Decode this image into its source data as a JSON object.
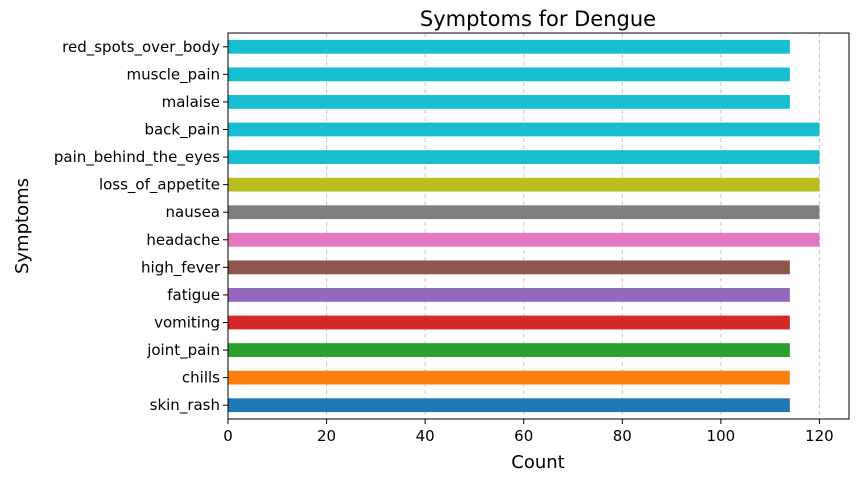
{
  "chart_data": {
    "type": "bar",
    "orientation": "horizontal",
    "title": "Symptoms for Dengue",
    "xlabel": "Count",
    "ylabel": "Symptoms",
    "xlim": [
      0,
      126
    ],
    "xticks": [
      0,
      20,
      40,
      60,
      80,
      100,
      120
    ],
    "grid": "x-dashed",
    "categories": [
      "skin_rash",
      "chills",
      "joint_pain",
      "vomiting",
      "fatigue",
      "high_fever",
      "headache",
      "nausea",
      "loss_of_appetite",
      "pain_behind_the_eyes",
      "back_pain",
      "malaise",
      "muscle_pain",
      "red_spots_over_body"
    ],
    "values": [
      114,
      114,
      114,
      114,
      114,
      114,
      120,
      120,
      120,
      120,
      120,
      114,
      114,
      114
    ],
    "colors": [
      "#1f77b4",
      "#ff7f0e",
      "#2ca02c",
      "#d62728",
      "#9467bd",
      "#8c564b",
      "#e377c2",
      "#7f7f7f",
      "#bcbd22",
      "#17becf",
      "#17becf",
      "#17becf",
      "#17becf",
      "#17becf"
    ]
  }
}
